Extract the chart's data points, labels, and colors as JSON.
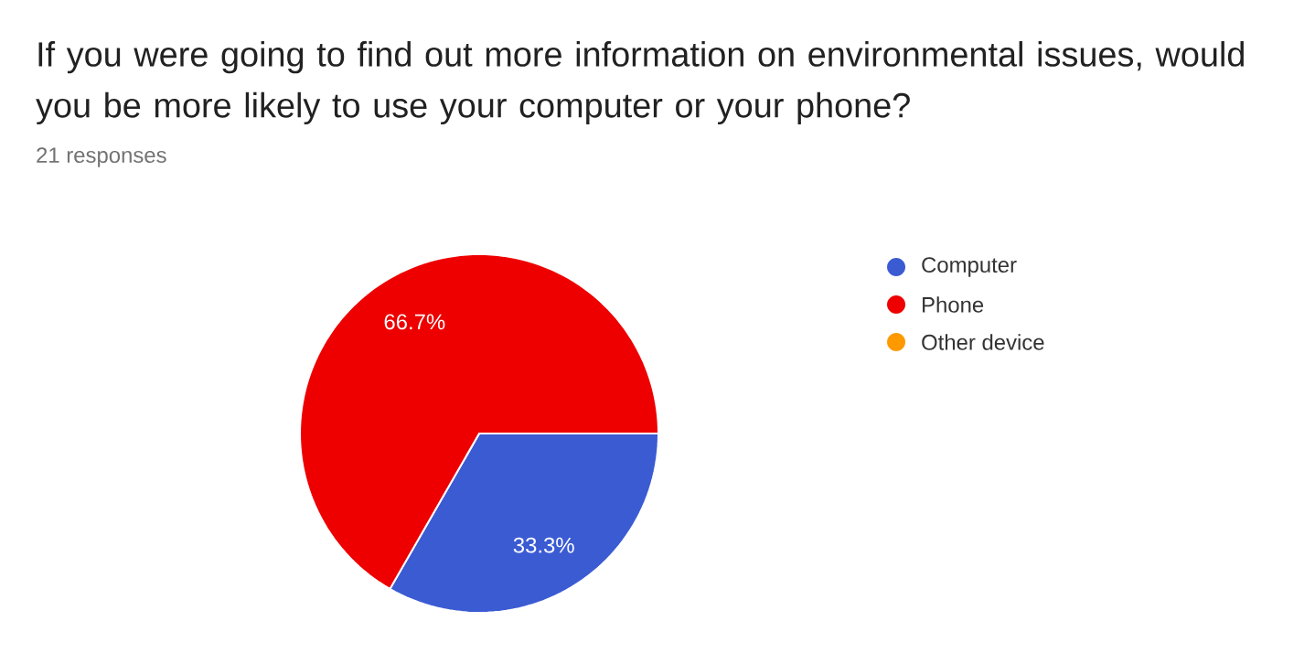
{
  "chart_data": {
    "type": "pie",
    "title": "If you were going to find out more information on environmental issues, would you be more likely to use your computer or your phone?",
    "subtitle": "21 responses",
    "categories": [
      "Computer",
      "Phone",
      "Other device"
    ],
    "values": [
      33.3,
      66.7,
      0
    ],
    "colors": [
      "#3b5bd3",
      "#ee0000",
      "#ff9900"
    ],
    "value_labels": [
      "33.3%",
      "66.7%",
      null
    ],
    "legend": "right"
  }
}
